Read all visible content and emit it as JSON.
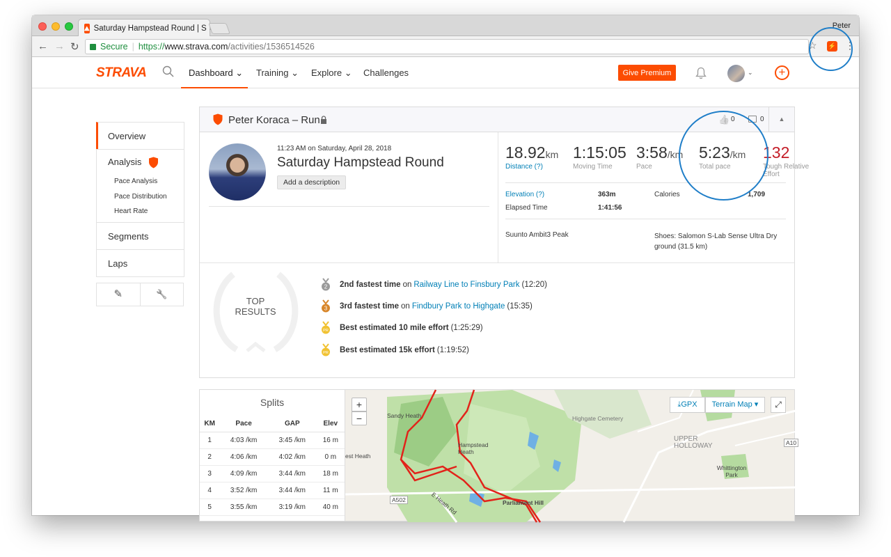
{
  "browser": {
    "tab_title": "Saturday Hampstead Round | S",
    "tab_close": "×",
    "profile_name": "Peter",
    "secure_label": "Secure",
    "url_scheme": "https://",
    "url_host": "www.strava.com",
    "url_path": "/activities/1536514526",
    "nav_back": "←",
    "nav_forward": "→",
    "nav_reload": "↻",
    "bookmark_icon": "☆",
    "menu_icon": "⋮"
  },
  "nav": {
    "logo": "STRAVA",
    "dashboard": "Dashboard ⌄",
    "training": "Training ⌄",
    "explore": "Explore ⌄",
    "challenges": "Challenges",
    "give_premium": "Give Premium",
    "add_icon": "+",
    "avatar_chevron": "⌄"
  },
  "sidebar": {
    "overview": "Overview",
    "analysis": "Analysis",
    "analysis_items": [
      "Pace Analysis",
      "Pace Distribution",
      "Heart Rate"
    ],
    "segments": "Segments",
    "laps": "Laps",
    "tool_edit": "✎",
    "tool_wrench": "🔧"
  },
  "activity": {
    "header_title": "Peter Koraca – Run",
    "kudos_icon": "👍",
    "kudos_count": "0",
    "comment_count": "0",
    "collapse_icon": "▲",
    "time": "11:23 AM on Saturday, April 28, 2018",
    "name": "Saturday Hampstead Round",
    "add_description": "Add a description",
    "stats": {
      "distance_value": "18.92",
      "distance_unit": "km",
      "distance_label": "Distance (?)",
      "moving_value": "1:15:05",
      "moving_label": "Moving Time",
      "pace_value": "3:58",
      "pace_unit": "/km",
      "pace_label": "Pace",
      "total_pace_value": "5:23",
      "total_pace_unit": "/km",
      "total_pace_label": "Total pace",
      "suffer_value": "132",
      "suffer_label": "Tough Relative Effort"
    },
    "elevation_label": "Elevation (?)",
    "elevation_value": "363m",
    "calories_label": "Calories",
    "calories_value": "1,709",
    "elapsed_label": "Elapsed Time",
    "elapsed_value": "1:41:56",
    "device": "Suunto Ambit3 Peak",
    "shoes": "Shoes: Salomon S-Lab Sense Ultra Dry ground (31.5 km)"
  },
  "top_results": {
    "label_line1": "TOP",
    "label_line2": "RESULTS",
    "items": [
      {
        "bold": "2nd fastest time",
        "pre": "on",
        "link": "Railway Line to Finsbury Park",
        "time": "(12:20)",
        "medal": "2",
        "color": "#9b9b9b"
      },
      {
        "bold": "3rd fastest time",
        "pre": "on",
        "link": "Findbury Park to Highgate",
        "time": "(15:35)",
        "medal": "3",
        "color": "#d8862a"
      },
      {
        "bold": "Best estimated 10 mile effort",
        "pre": "",
        "link": "",
        "time": "(1:25:29)",
        "medal": "PR",
        "color": "#f1c232"
      },
      {
        "bold": "Best estimated 15k effort",
        "pre": "",
        "link": "",
        "time": "(1:19:52)",
        "medal": "PR",
        "color": "#f1c232"
      }
    ]
  },
  "splits": {
    "title": "Splits",
    "headers": [
      "KM",
      "Pace",
      "GAP",
      "Elev"
    ],
    "rows": [
      [
        "1",
        "4:03 /km",
        "3:45 /km",
        "16 m"
      ],
      [
        "2",
        "4:06 /km",
        "4:02 /km",
        "0 m"
      ],
      [
        "3",
        "4:09 /km",
        "3:44 /km",
        "18 m"
      ],
      [
        "4",
        "3:52 /km",
        "3:44 /km",
        "11 m"
      ],
      [
        "5",
        "3:55 /km",
        "3:19 /km",
        "40 m"
      ]
    ]
  },
  "map": {
    "zoom_in": "+",
    "zoom_out": "−",
    "gpx": "GPX",
    "terrain": "Terrain Map ▾",
    "fullscreen": "⤢",
    "labels": {
      "sandy_heath": "Sandy Heath",
      "hampstead_heath": "Hampstead Heath",
      "west_heath": "est Heath",
      "highgate_cemetery": "Highgate Cemetery",
      "upper_holloway": "UPPER HOLLOWAY",
      "whittington_park": "Whittington Park",
      "parliament_hill": "Parliament Hill",
      "a502": "A502",
      "e_heath_rd": "E Heath Rd",
      "a10": "A10"
    }
  },
  "colors": {
    "brand": "#fc4c02",
    "link": "#007fb6",
    "suffer": "#c41c27",
    "annotation": "#1f7ec8",
    "route": "#e2231a"
  }
}
